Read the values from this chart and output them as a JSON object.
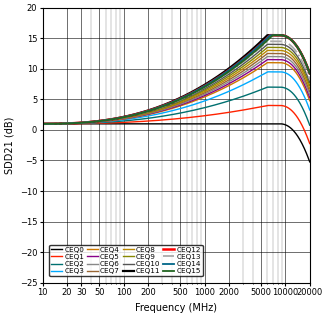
{
  "xlabel": "Frequency (MHz)",
  "ylabel": "SDD21 (dB)",
  "xmin": 10,
  "xmax": 20000,
  "ymin": -25,
  "ymax": 20,
  "yticks": [
    -25,
    -20,
    -15,
    -10,
    -5,
    0,
    5,
    10,
    15,
    20
  ],
  "xticks": [
    10,
    20,
    30,
    50,
    100,
    200,
    500,
    1000,
    2000,
    5000,
    10000,
    20000
  ],
  "xtick_labels": [
    "10",
    "20",
    "30",
    "50",
    "100",
    "200",
    "500",
    "1000",
    "2000",
    "5000",
    "10000",
    "20000"
  ],
  "curves": [
    {
      "name": "CEQ0",
      "color": "#000000",
      "lw": 1.0,
      "ls": "-",
      "flat_db": 1.0,
      "peak_db": 1.0,
      "peak_f": 6000,
      "rolloff_f": 8500
    },
    {
      "name": "CEQ1",
      "color": "#ff2200",
      "lw": 1.0,
      "ls": "-",
      "flat_db": 1.0,
      "peak_db": 4.0,
      "peak_f": 6000,
      "rolloff_f": 8500
    },
    {
      "name": "CEQ2",
      "color": "#007070",
      "lw": 1.0,
      "ls": "-",
      "flat_db": 1.0,
      "peak_db": 7.0,
      "peak_f": 6000,
      "rolloff_f": 8500
    },
    {
      "name": "CEQ3",
      "color": "#00aaff",
      "lw": 1.0,
      "ls": "-",
      "flat_db": 1.0,
      "peak_db": 9.5,
      "peak_f": 6000,
      "rolloff_f": 8500
    },
    {
      "name": "CEQ4",
      "color": "#cc7700",
      "lw": 1.0,
      "ls": "-",
      "flat_db": 1.0,
      "peak_db": 11.0,
      "peak_f": 6000,
      "rolloff_f": 8500
    },
    {
      "name": "CEQ5",
      "color": "#880088",
      "lw": 1.0,
      "ls": "-",
      "flat_db": 1.0,
      "peak_db": 11.5,
      "peak_f": 6000,
      "rolloff_f": 8500
    },
    {
      "name": "CEQ6",
      "color": "#888888",
      "lw": 1.0,
      "ls": "-",
      "flat_db": 1.0,
      "peak_db": 12.0,
      "peak_f": 6000,
      "rolloff_f": 8500
    },
    {
      "name": "CEQ7",
      "color": "#996633",
      "lw": 1.0,
      "ls": "-",
      "flat_db": 1.0,
      "peak_db": 12.5,
      "peak_f": 6000,
      "rolloff_f": 8500
    },
    {
      "name": "CEQ8",
      "color": "#bb8800",
      "lw": 1.0,
      "ls": "-",
      "flat_db": 1.0,
      "peak_db": 13.0,
      "peak_f": 6000,
      "rolloff_f": 8500
    },
    {
      "name": "CEQ9",
      "color": "#888800",
      "lw": 1.0,
      "ls": "-",
      "flat_db": 1.0,
      "peak_db": 13.5,
      "peak_f": 6000,
      "rolloff_f": 8500
    },
    {
      "name": "CEQ10",
      "color": "#555555",
      "lw": 1.0,
      "ls": "-",
      "flat_db": 1.0,
      "peak_db": 14.0,
      "peak_f": 6000,
      "rolloff_f": 8500
    },
    {
      "name": "CEQ11",
      "color": "#000000",
      "lw": 1.6,
      "ls": "-",
      "flat_db": 1.0,
      "peak_db": 15.5,
      "peak_f": 6000,
      "rolloff_f": 8500
    },
    {
      "name": "CEQ12",
      "color": "#ff0000",
      "lw": 1.8,
      "ls": "-",
      "flat_db": 1.0,
      "peak_db": 15.5,
      "peak_f": 6500,
      "rolloff_f": 8500
    },
    {
      "name": "CEQ13",
      "color": "#aaaaaa",
      "lw": 1.3,
      "ls": "-.",
      "flat_db": 1.0,
      "peak_db": 14.5,
      "peak_f": 6000,
      "rolloff_f": 8500
    },
    {
      "name": "CEQ14",
      "color": "#006688",
      "lw": 1.3,
      "ls": "-",
      "flat_db": 1.0,
      "peak_db": 15.5,
      "peak_f": 6500,
      "rolloff_f": 8500
    },
    {
      "name": "CEQ15",
      "color": "#226622",
      "lw": 1.3,
      "ls": "-",
      "flat_db": 1.0,
      "peak_db": 15.5,
      "peak_f": 7000,
      "rolloff_f": 8500
    }
  ]
}
